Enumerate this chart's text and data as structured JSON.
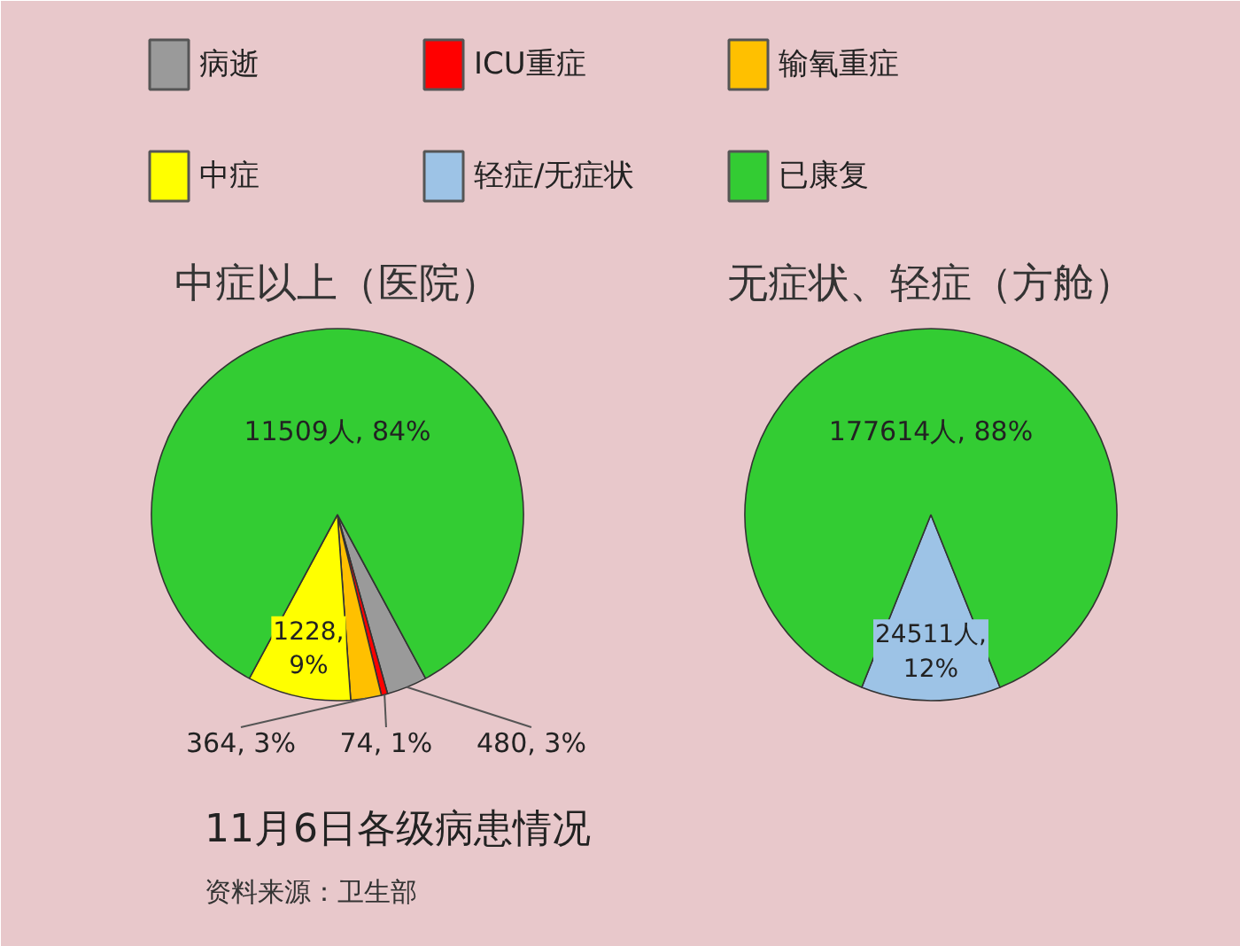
{
  "chart_data": [
    {
      "type": "pie",
      "title": "中症以上（医院）",
      "categories": [
        "病逝",
        "ICU重症",
        "输氧重症",
        "中症",
        null
      ],
      "values": [
        480,
        74,
        364,
        1228,
        11509
      ],
      "colors": [
        "#9a9a9a",
        "#ff0000",
        "#ffc000",
        "#ffff00",
        "#33cc33"
      ],
      "value_labels": [
        "480, 3%",
        "74, 1%",
        "364, 3%",
        "1228, 9%",
        "11509人, 84%"
      ],
      "legend": "top"
    },
    {
      "type": "pie",
      "title": "无症状、轻症（方舱）",
      "categories": [
        "轻症/无症状",
        "已康复"
      ],
      "values": [
        24511,
        177614
      ],
      "colors": [
        "#9dc3e6",
        "#33cc33"
      ],
      "value_labels": [
        "24511人, 12%",
        "177614人, 88%"
      ],
      "legend": "top"
    },
    {
      "type": "other",
      "title": "11月6日各级病患情况",
      "annotations": [
        "资料来源：卫生部"
      ]
    }
  ]
}
